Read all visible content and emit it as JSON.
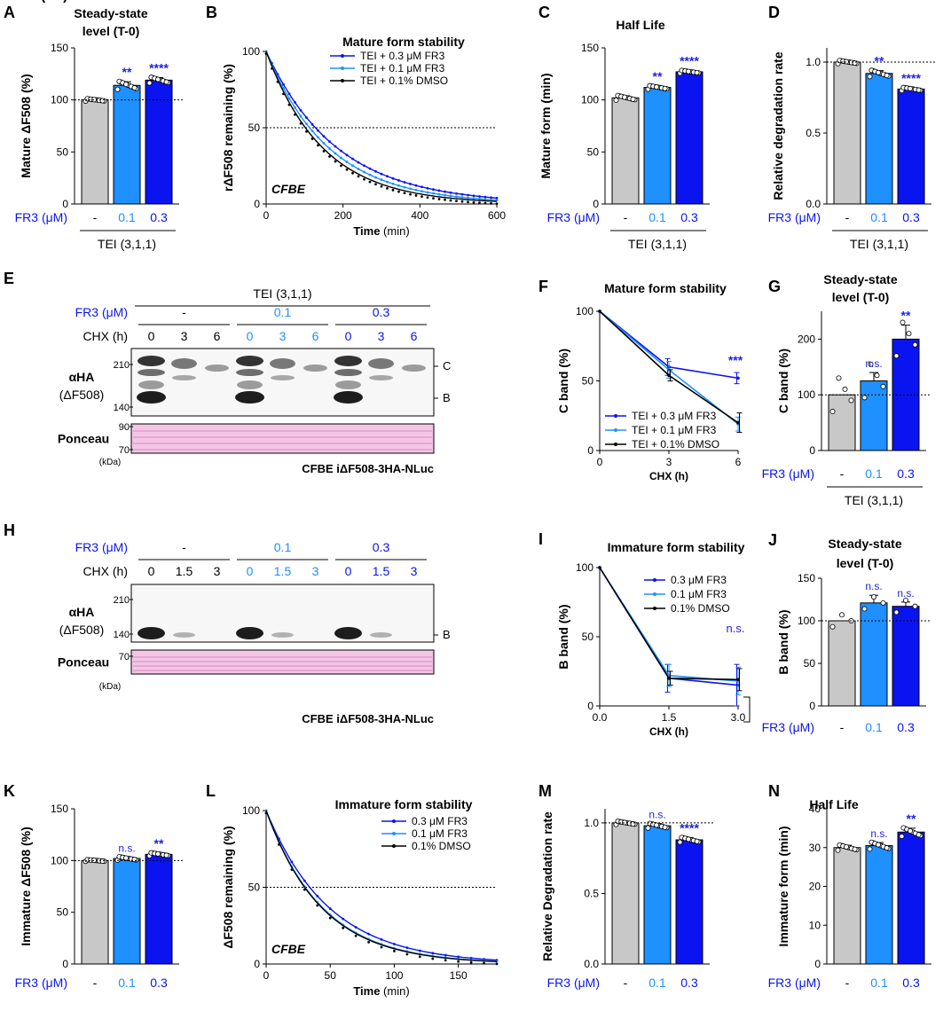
{
  "figure": {
    "colors": {
      "dmso": "#c8c8c8",
      "fr01": "#1e90ff",
      "fr03": "#0a14f0",
      "black": "#000000",
      "ponceau": "#f4c6e6",
      "sig": "#2323dc"
    },
    "common": {
      "fr3": "FR3 (μM)",
      "dash": "-",
      "d01": "0.1",
      "d03": "0.3",
      "tei": "TEI (3,1,1)",
      "chx": "CHX (h)",
      "cband": "C",
      "bband": "B",
      "ha": "αHA",
      "haSub": "(ΔF508)",
      "ponceau": "Ponceau",
      "kda": "(kDa)",
      "cell": "CFBE iΔF508-3HA-NLuc",
      "cfbe": "CFBE"
    }
  },
  "chart_data": [
    {
      "panel": "A",
      "type": "bar",
      "title": "Steady-state level (T-0)",
      "ylabel": "Mature ΔF508 (%)",
      "ylim": [
        0,
        150
      ],
      "yticks": [
        0,
        50,
        100,
        150
      ],
      "categories": [
        "-",
        "0.1",
        "0.3"
      ],
      "values": [
        100,
        114,
        119
      ],
      "sem": [
        1,
        3.5,
        2.5
      ],
      "significance": [
        "",
        "**",
        "****"
      ],
      "reference_line": 100,
      "x_group_label": "TEI (3,1,1)"
    },
    {
      "panel": "B",
      "type": "line",
      "title": "Mature form stability",
      "xlabel": "Time",
      "xunit": "(min)",
      "ylabel": "rΔF508 remaining (%)",
      "xlim": [
        0,
        600
      ],
      "ylim": [
        0,
        100
      ],
      "xticks": [
        0,
        200,
        400,
        600
      ],
      "yticks": [
        0,
        50,
        100
      ],
      "reference_line": 50,
      "annotation": "CFBE",
      "series": [
        {
          "name": "TEI + 0.3 μM FR3",
          "half_life_min": 128
        },
        {
          "name": "TEI + 0.1 μM FR3",
          "half_life_min": 113
        },
        {
          "name": "TEI + 0.1% DMSO",
          "half_life_min": 102
        }
      ]
    },
    {
      "panel": "C",
      "type": "bar",
      "title": "Half Life",
      "ylabel": "Mature form (min)",
      "ylim": [
        0,
        150
      ],
      "yticks": [
        0,
        50,
        100,
        150
      ],
      "categories": [
        "-",
        "0.1",
        "0.3"
      ],
      "values": [
        102,
        112,
        127
      ],
      "sem": [
        2,
        1.5,
        1.2
      ],
      "significance": [
        "",
        "**",
        "****"
      ],
      "x_group_label": "TEI (3,1,1)"
    },
    {
      "panel": "D",
      "type": "bar",
      "title": "",
      "ylabel": "Relative degradation rate",
      "ylim": [
        0,
        1.1
      ],
      "yticks": [
        "0.0",
        "0.5",
        "1.0"
      ],
      "categories": [
        "-",
        "0.1",
        "0.3"
      ],
      "values": [
        1.0,
        0.92,
        0.81
      ],
      "sem": [
        0.01,
        0.02,
        0.01
      ],
      "significance": [
        "",
        "**",
        "****"
      ],
      "reference_line": 1.0,
      "x_group_label": "TEI (3,1,1)"
    },
    {
      "panel": "F",
      "type": "line",
      "title": "Mature form stability",
      "xlabel": "CHX (h)",
      "ylabel": "C band (%)",
      "xlim": [
        0,
        6
      ],
      "ylim": [
        0,
        100
      ],
      "xticks": [
        0,
        3,
        6
      ],
      "yticks": [
        0,
        50,
        100
      ],
      "significance": "***",
      "series": [
        {
          "name": "TEI + 0.3 μM FR3",
          "x": [
            0,
            3,
            6
          ],
          "y": [
            100,
            60,
            52
          ],
          "sem": [
            0,
            6,
            4
          ]
        },
        {
          "name": "TEI + 0.1 μM FR3",
          "x": [
            0,
            3,
            6
          ],
          "y": [
            100,
            58,
            19
          ],
          "sem": [
            0,
            6,
            5
          ]
        },
        {
          "name": "TEI + 0.1% DMSO",
          "x": [
            0,
            3,
            6
          ],
          "y": [
            100,
            54,
            20
          ],
          "sem": [
            0,
            4,
            7
          ]
        }
      ]
    },
    {
      "panel": "G",
      "type": "bar",
      "title": "Steady-state level (T-0)",
      "ylabel": "C band (%)",
      "ylim": [
        0,
        250
      ],
      "yticks": [
        0,
        100,
        200
      ],
      "categories": [
        "-",
        "0.1",
        "0.3"
      ],
      "values": [
        100,
        125,
        200
      ],
      "sem": [
        0,
        15,
        25
      ],
      "significance": [
        "",
        "n.s.",
        "**"
      ],
      "reference_line": 100,
      "x_group_label": "TEI (3,1,1)"
    },
    {
      "panel": "I",
      "type": "line",
      "title": "Immature form stability",
      "xlabel": "CHX (h)",
      "ylabel": "B band (%)",
      "xlim": [
        0,
        3
      ],
      "ylim": [
        0,
        100
      ],
      "xticks": [
        "0.0",
        "1.5",
        "3.0"
      ],
      "yticks": [
        0,
        50,
        100
      ],
      "significance": "n.s.",
      "series": [
        {
          "name": "0.3 μM FR3",
          "x": [
            0,
            1.5,
            3.0
          ],
          "y": [
            100,
            20,
            15
          ],
          "sem": [
            0,
            10,
            15
          ]
        },
        {
          "name": "0.1 μM FR3",
          "x": [
            0,
            1.5,
            3.0
          ],
          "y": [
            100,
            22,
            18
          ],
          "sem": [
            0,
            8,
            10
          ]
        },
        {
          "name": "0.1% DMSO",
          "x": [
            0,
            1.5,
            3.0
          ],
          "y": [
            100,
            20,
            19
          ],
          "sem": [
            0,
            5,
            8
          ]
        }
      ]
    },
    {
      "panel": "J",
      "type": "bar",
      "title": "Steady-state level (T-0)",
      "ylabel": "B band (%)",
      "ylim": [
        0,
        150
      ],
      "yticks": [
        0,
        50,
        100,
        150
      ],
      "categories": [
        "-",
        "0.1",
        "0.3"
      ],
      "values": [
        100,
        121,
        117
      ],
      "sem": [
        0,
        9,
        5
      ],
      "significance": [
        "",
        "n.s.",
        "n.s."
      ],
      "reference_line": 100
    },
    {
      "panel": "K",
      "type": "bar",
      "title": "",
      "ylabel": "Immature ΔF508 (%)",
      "ylim": [
        0,
        150
      ],
      "yticks": [
        0,
        50,
        100,
        150
      ],
      "categories": [
        "-",
        "0.1",
        "0.3"
      ],
      "values": [
        100,
        102,
        106
      ],
      "sem": [
        0.7,
        1.5,
        1.3
      ],
      "significance": [
        "",
        "n.s.",
        "**"
      ],
      "reference_line": 100
    },
    {
      "panel": "L",
      "type": "line",
      "title": "Immature form stability",
      "xlabel": "Time",
      "xunit": "(min)",
      "ylabel": "ΔF508 remaining (%)",
      "xlim": [
        0,
        180
      ],
      "ylim": [
        0,
        100
      ],
      "xticks": [
        0,
        50,
        100,
        150
      ],
      "yticks": [
        0,
        50,
        100
      ],
      "reference_line": 50,
      "annotation": "CFBE",
      "series": [
        {
          "name": "0.3 μM FR3",
          "half_life_min": 34
        },
        {
          "name": "0.1 μM FR3",
          "half_life_min": 30.5
        },
        {
          "name": "0.1% DMSO",
          "half_life_min": 30
        }
      ]
    },
    {
      "panel": "M",
      "type": "bar",
      "title": "",
      "ylabel": "Relative Degradation rate",
      "ylim": [
        0,
        1.1
      ],
      "yticks": [
        "0.0",
        "0.5",
        "1.0"
      ],
      "categories": [
        "-",
        "0.1",
        "0.3"
      ],
      "values": [
        1.0,
        0.98,
        0.88
      ],
      "sem": [
        0.01,
        0.015,
        0.015
      ],
      "significance": [
        "",
        "n.s.",
        "****"
      ],
      "reference_line": 1.0
    },
    {
      "panel": "N",
      "type": "bar",
      "title": "Half Life",
      "ylabel": "Immature form (min)",
      "ylim": [
        0,
        40
      ],
      "yticks": [
        0,
        10,
        20,
        30,
        40
      ],
      "categories": [
        "-",
        "0.1",
        "0.3"
      ],
      "values": [
        30,
        30.5,
        34
      ],
      "sem": [
        0.6,
        0.8,
        1.0
      ],
      "significance": [
        "",
        "n.s.",
        "**"
      ]
    }
  ],
  "blots": [
    {
      "panel": "E",
      "header": "TEI (3,1,1)",
      "conditions": [
        "-",
        "0.1",
        "0.3"
      ],
      "chx": [
        "0",
        "3",
        "6"
      ],
      "mw": [
        "210",
        "140"
      ],
      "ponceau_mw": [
        "90",
        "70"
      ]
    },
    {
      "panel": "H",
      "conditions": [
        "-",
        "0.1",
        "0.3"
      ],
      "chx": [
        "0",
        "1.5",
        "3"
      ],
      "mw": [
        "210",
        "140"
      ],
      "ponceau_mw": [
        "70"
      ]
    }
  ]
}
